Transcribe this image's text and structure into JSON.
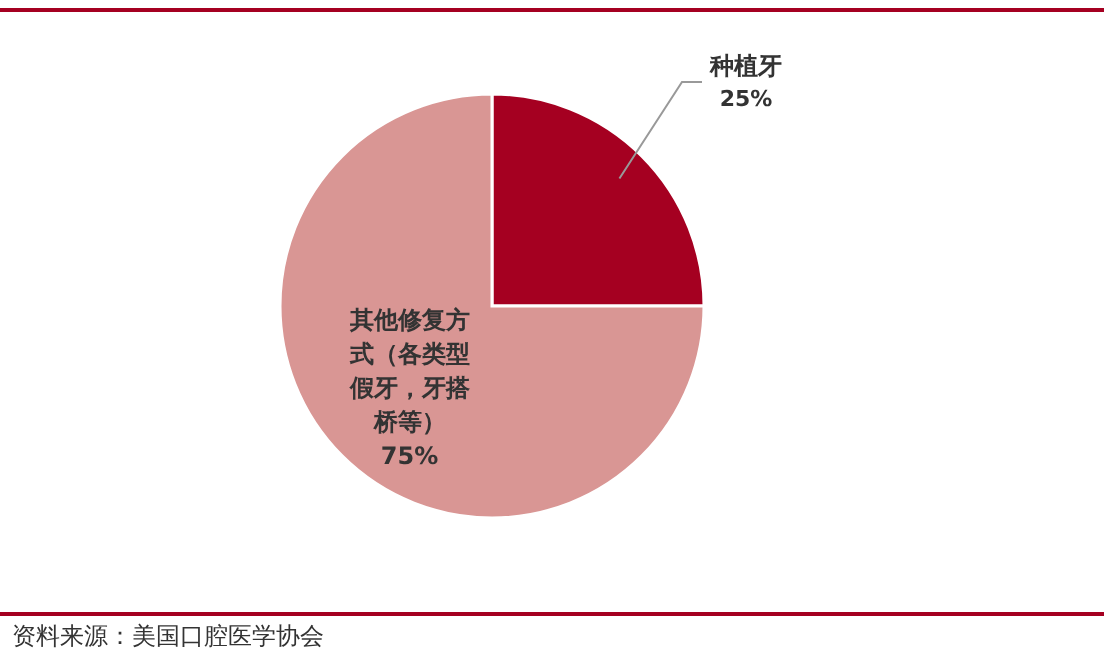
{
  "chart_data": {
    "type": "pie",
    "categories": [
      "种植牙",
      "其他修复方式（各类型假牙，牙搭桥等）"
    ],
    "values": [
      25,
      75
    ],
    "colors": [
      "#a50021",
      "#d99694"
    ],
    "value_labels": [
      "25%",
      "75%"
    ],
    "annotations": [
      "资料来源：美国口腔医学协会"
    ]
  }
}
